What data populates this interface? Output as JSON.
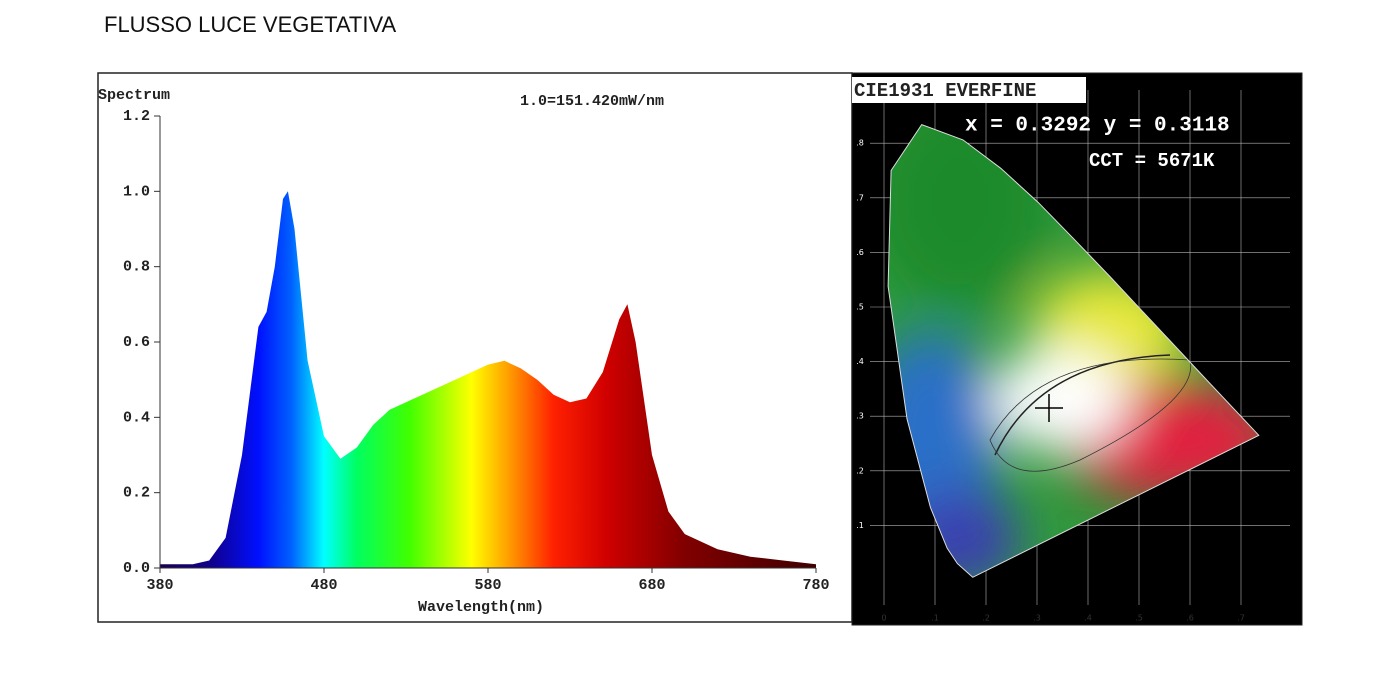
{
  "title": "FLUSSO LUCE VEGETATIVA",
  "chart_data": {
    "type": "area",
    "title": "Spectrum",
    "annotation": "1.0=151.420mW/nm",
    "x_label": "Wavelength(nm)",
    "x": [
      380,
      390,
      400,
      410,
      420,
      430,
      440,
      445,
      450,
      455,
      458,
      462,
      470,
      480,
      490,
      500,
      510,
      520,
      530,
      540,
      550,
      560,
      570,
      580,
      590,
      600,
      610,
      620,
      630,
      640,
      650,
      660,
      665,
      670,
      680,
      690,
      700,
      720,
      740,
      760,
      780
    ],
    "values": [
      0.01,
      0.01,
      0.01,
      0.02,
      0.08,
      0.3,
      0.64,
      0.68,
      0.8,
      0.98,
      1.0,
      0.9,
      0.55,
      0.35,
      0.29,
      0.32,
      0.38,
      0.42,
      0.44,
      0.46,
      0.48,
      0.5,
      0.52,
      0.54,
      0.55,
      0.53,
      0.5,
      0.46,
      0.44,
      0.45,
      0.52,
      0.66,
      0.7,
      0.6,
      0.3,
      0.15,
      0.09,
      0.05,
      0.03,
      0.02,
      0.01
    ],
    "xlim": [
      380,
      780
    ],
    "xticks": [
      380,
      480,
      580,
      680,
      780
    ],
    "ylim": [
      0,
      1.2
    ],
    "yticks": [
      {
        "value": 0,
        "label": "0.0"
      },
      0.2,
      0.4,
      0.6,
      0.8,
      {
        "value": 1,
        "label": "1.0"
      },
      1.2
    ]
  },
  "cie": {
    "title": "CIE1931 EVERFINE",
    "coordinates": "x = 0.3292 y = 0.3118",
    "cct": "CCT = 5671K",
    "x_axis_labels": [
      "0",
      ".1",
      ".2",
      ".3",
      ".4",
      ".5",
      ".6",
      ".7"
    ],
    "y_axis_labels": [
      ".1",
      ".2",
      ".3",
      ".4",
      ".5",
      ".6",
      ".7",
      ".8"
    ]
  }
}
